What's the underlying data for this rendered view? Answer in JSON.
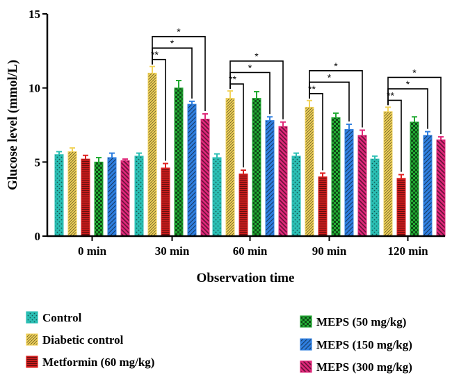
{
  "chart_data": {
    "type": "bar",
    "xlabel": "Observation time",
    "ylabel": "Glucose level (mmol/L)",
    "ylim": [
      0,
      15
    ],
    "yticks": [
      "0",
      "5",
      "10",
      "15"
    ],
    "categories": [
      "0 min",
      "30 min",
      "60 min",
      "90 min",
      "120 min"
    ],
    "legend_placement": "bottom",
    "series": [
      {
        "name": "Control",
        "color": "#2bbfb4",
        "pattern": "dots",
        "values": [
          5.5,
          5.4,
          5.3,
          5.4,
          5.2
        ],
        "errors": [
          0.2,
          0.2,
          0.25,
          0.2,
          0.2
        ]
      },
      {
        "name": "Diabetic control",
        "color": "#f2d35a",
        "pattern": "diag-dense",
        "values": [
          5.7,
          11.0,
          9.3,
          8.7,
          8.4
        ],
        "errors": [
          0.25,
          0.45,
          0.5,
          0.45,
          0.3
        ]
      },
      {
        "name": "Metformin (60 mg/kg)",
        "color": "#e02020",
        "pattern": "hlines",
        "values": [
          5.2,
          4.6,
          4.2,
          4.0,
          3.9
        ],
        "errors": [
          0.25,
          0.3,
          0.25,
          0.25,
          0.25
        ]
      },
      {
        "name": "MEPS (50 mg/kg)",
        "color": "#22aa33",
        "pattern": "checker",
        "values": [
          5.0,
          10.0,
          9.3,
          8.0,
          7.7
        ],
        "errors": [
          0.3,
          0.5,
          0.45,
          0.3,
          0.35
        ]
      },
      {
        "name": "MEPS (150 mg/kg)",
        "color": "#2f7fe0",
        "pattern": "diag",
        "values": [
          5.3,
          8.9,
          7.8,
          7.2,
          6.8
        ],
        "errors": [
          0.3,
          0.2,
          0.25,
          0.35,
          0.25
        ]
      },
      {
        "name": "MEPS (300 mg/kg)",
        "color": "#e0287a",
        "pattern": "bdiag",
        "values": [
          5.1,
          7.9,
          7.4,
          6.8,
          6.5
        ],
        "errors": [
          0.1,
          0.35,
          0.3,
          0.35,
          0.2
        ]
      }
    ],
    "annotations": [
      {
        "category": "30 min",
        "from_series": 1,
        "to_series": 2,
        "label": "**"
      },
      {
        "category": "30 min",
        "from_series": 1,
        "to_series": 4,
        "label": "*"
      },
      {
        "category": "30 min",
        "from_series": 1,
        "to_series": 5,
        "label": "*"
      },
      {
        "category": "60 min",
        "from_series": 1,
        "to_series": 2,
        "label": "**"
      },
      {
        "category": "60 min",
        "from_series": 1,
        "to_series": 4,
        "label": "*"
      },
      {
        "category": "60 min",
        "from_series": 1,
        "to_series": 5,
        "label": "*"
      },
      {
        "category": "90 min",
        "from_series": 1,
        "to_series": 2,
        "label": "**"
      },
      {
        "category": "90 min",
        "from_series": 1,
        "to_series": 4,
        "label": "*"
      },
      {
        "category": "90 min",
        "from_series": 1,
        "to_series": 5,
        "label": "*"
      },
      {
        "category": "120 min",
        "from_series": 1,
        "to_series": 2,
        "label": "**"
      },
      {
        "category": "120 min",
        "from_series": 1,
        "to_series": 4,
        "label": "*"
      },
      {
        "category": "120 min",
        "from_series": 1,
        "to_series": 5,
        "label": "*"
      }
    ]
  }
}
